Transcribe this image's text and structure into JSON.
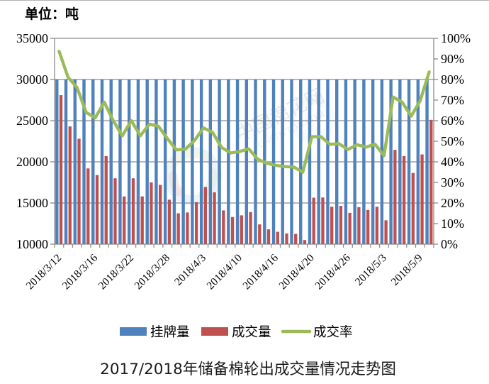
{
  "unit_label": "单位：吨",
  "title": "2017/2018年储备棉轮出成交量情况走势图",
  "legend": [
    {
      "label": "挂牌量",
      "color": "#4F81BD",
      "type": "bar"
    },
    {
      "label": "成交量",
      "color": "#C0504D",
      "type": "bar"
    },
    {
      "label": "成交率",
      "color": "#9BBB59",
      "type": "line"
    }
  ],
  "watermark": {
    "text": "中国棉花网",
    "subtext": "CNCOTTON.COM"
  },
  "chart_data": {
    "type": "bar",
    "subtype": "combo-bar-line",
    "grid": true,
    "legend_position": "bottom",
    "categories": [
      "2018/3/12",
      "2018/3/13",
      "2018/3/14",
      "2018/3/15",
      "2018/3/16",
      "2018/3/19",
      "2018/3/20",
      "2018/3/21",
      "2018/3/22",
      "2018/3/23",
      "2018/3/26",
      "2018/3/27",
      "2018/3/28",
      "2018/3/29",
      "2018/3/30",
      "2018/4/2",
      "2018/4/3",
      "2018/4/4",
      "2018/4/8",
      "2018/4/9",
      "2018/4/10",
      "2018/4/11",
      "2018/4/12",
      "2018/4/13",
      "2018/4/16",
      "2018/4/17",
      "2018/4/18",
      "2018/4/19",
      "2018/4/20",
      "2018/4/23",
      "2018/4/24",
      "2018/4/25",
      "2018/4/26",
      "2018/4/27",
      "2018/4/28",
      "2018/5/2",
      "2018/5/3",
      "2018/5/4",
      "2018/5/7",
      "2018/5/8",
      "2018/5/9",
      "2018/5/10"
    ],
    "x_axis": {
      "visible_labels": [
        "2018/3/12",
        "2018/3/16",
        "2018/3/22",
        "2018/3/28",
        "2018/4/3",
        "2018/4/10",
        "2018/4/16",
        "2018/4/20",
        "2018/4/26",
        "2018/5/3",
        "2018/5/9"
      ],
      "visible_label_indices": [
        0,
        4,
        8,
        12,
        16,
        20,
        24,
        28,
        32,
        36,
        40
      ],
      "label_rotation_deg": -45
    },
    "left_axis": {
      "min": 10000,
      "max": 35000,
      "step": 5000,
      "ticks": [
        "35000",
        "30000",
        "25000",
        "20000",
        "15000",
        "10000"
      ]
    },
    "right_axis": {
      "min": 0,
      "max": 100,
      "step": 10,
      "format": "percent",
      "ticks": [
        "100%",
        "90%",
        "80%",
        "70%",
        "60%",
        "50%",
        "40%",
        "30%",
        "20%",
        "10%",
        "0%"
      ]
    },
    "series": [
      {
        "name": "挂牌量",
        "type": "bar",
        "axis": "left",
        "color": "#4F81BD",
        "values": [
          30000,
          30000,
          30000,
          30000,
          30000,
          30000,
          30000,
          30000,
          30000,
          30000,
          30000,
          30000,
          30000,
          30000,
          30000,
          30000,
          30000,
          30000,
          30000,
          30000,
          30000,
          30000,
          30000,
          30000,
          30000,
          30000,
          30000,
          30000,
          30000,
          30000,
          30000,
          30000,
          30000,
          30000,
          30000,
          30000,
          30000,
          30000,
          30000,
          30000,
          30000,
          30000
        ]
      },
      {
        "name": "成交量",
        "type": "bar",
        "axis": "left",
        "color": "#C0504D",
        "values": [
          28100,
          24300,
          22800,
          19200,
          18400,
          20700,
          18000,
          15800,
          18000,
          15800,
          17500,
          17200,
          15400,
          13750,
          13850,
          15100,
          16950,
          16300,
          14100,
          13300,
          13500,
          13900,
          12400,
          11800,
          11500,
          11300,
          11250,
          10500,
          15650,
          15670,
          14550,
          14650,
          13800,
          14500,
          14150,
          14550,
          12900,
          21450,
          20700,
          18650,
          20900,
          25100
        ]
      },
      {
        "name": "成交率",
        "type": "line",
        "axis": "right",
        "color": "#9BBB59",
        "unit": "%",
        "values": [
          93.7,
          81.0,
          76.0,
          64.0,
          61.3,
          69.0,
          60.0,
          52.7,
          60.0,
          52.7,
          58.3,
          57.3,
          51.3,
          45.8,
          46.2,
          50.3,
          56.5,
          54.3,
          47.0,
          44.3,
          45.0,
          46.3,
          41.3,
          39.3,
          38.3,
          37.7,
          37.5,
          35.0,
          52.2,
          52.2,
          48.5,
          48.8,
          46.0,
          48.3,
          47.2,
          48.5,
          43.0,
          71.5,
          69.0,
          62.2,
          69.7,
          83.7
        ]
      }
    ]
  }
}
